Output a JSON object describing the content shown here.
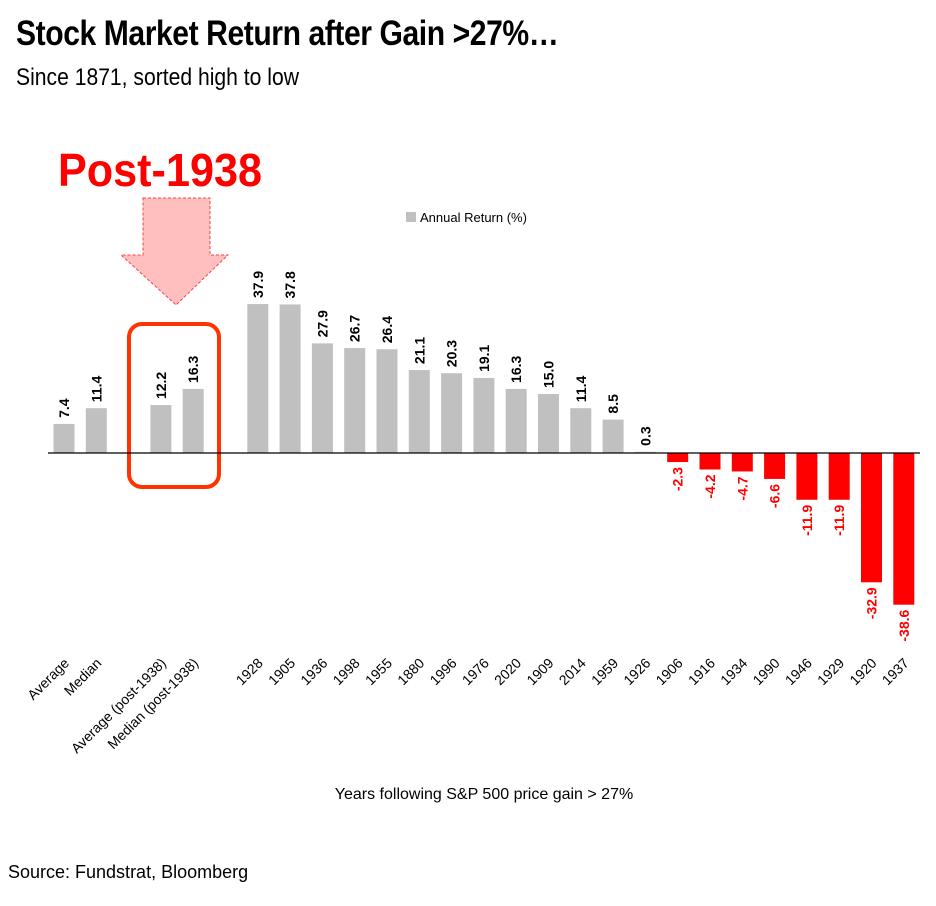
{
  "header": {
    "title": "Stock Market Return after Gain >27%…",
    "subtitle": "Since 1871, sorted high to low"
  },
  "annotation": {
    "label": "Post-1938",
    "color": "#ff0000",
    "box_color": "#ff3300",
    "arrow_fill": "#ffbfbf"
  },
  "source": "Source: Fundstrat, Bloomberg",
  "chart_data": {
    "type": "bar",
    "title": "Stock Market Return after Gain >27%…",
    "xlabel": "Years following S&P 500 price gain > 27%",
    "ylabel": "",
    "legend": {
      "label": "Annual Return (%)",
      "placement": "top-center"
    },
    "grid": false,
    "ylim": [
      -40,
      40
    ],
    "positive_color": "#c0c0c0",
    "negative_color": "#ff0000",
    "categories": [
      "Average",
      "Median",
      "",
      "Average (post-1938)",
      "Median (post-1938)",
      "",
      "1928",
      "1905",
      "1936",
      "1998",
      "1955",
      "1880",
      "1996",
      "1976",
      "2020",
      "1909",
      "2014",
      "1959",
      "1926",
      "1906",
      "1916",
      "1934",
      "1990",
      "1946",
      "1929",
      "1920",
      "1937"
    ],
    "values": [
      7.4,
      11.4,
      null,
      12.2,
      16.3,
      null,
      37.9,
      37.8,
      27.9,
      26.7,
      26.4,
      21.1,
      20.3,
      19.1,
      16.3,
      15.0,
      11.4,
      8.5,
      0.3,
      -2.3,
      -4.2,
      -4.7,
      -6.6,
      -11.9,
      -11.9,
      -32.9,
      -38.6
    ],
    "labels": [
      "7.4",
      "11.4",
      "",
      "12.2",
      "16.3",
      "",
      "37.9",
      "37.8",
      "27.9",
      "26.7",
      "26.4",
      "21.1",
      "20.3",
      "19.1",
      "16.3",
      "15.0",
      "11.4",
      "8.5",
      "0.3",
      "-2.3",
      "-4.2",
      "-4.7",
      "-6.6",
      "-11.9",
      "-11.9",
      "-32.9",
      "-38.6"
    ]
  }
}
